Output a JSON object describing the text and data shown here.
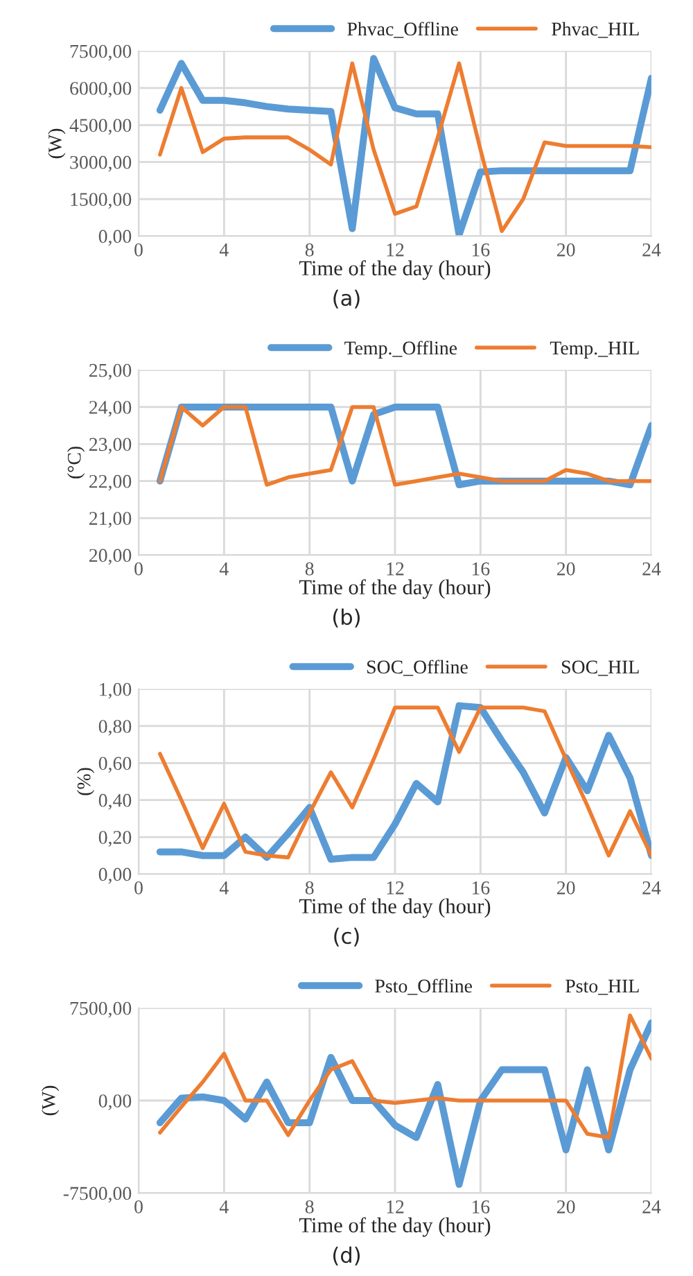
{
  "chart_data": [
    {
      "type": "line",
      "xlabel": "Time of the day (hour)",
      "ylabel": "(W)",
      "annotations": [
        "(a)"
      ],
      "x": [
        1,
        2,
        3,
        4,
        5,
        6,
        7,
        8,
        9,
        10,
        11,
        12,
        13,
        14,
        15,
        16,
        17,
        18,
        19,
        20,
        21,
        22,
        23,
        24
      ],
      "series": [
        {
          "name": "Phvac_Offline",
          "color": "#5b9bd5",
          "values": [
            5100,
            7000,
            5500,
            5500,
            5400,
            5250,
            5150,
            5100,
            5050,
            300,
            7200,
            5200,
            4950,
            4950,
            50,
            2600,
            2650,
            2650,
            2650,
            2650,
            2650,
            2650,
            2650,
            6400
          ]
        },
        {
          "name": "Phvac_HIL",
          "color": "#ed7d31",
          "values": [
            3300,
            6000,
            3400,
            3950,
            4000,
            4000,
            4000,
            3500,
            2900,
            7000,
            3500,
            900,
            1200,
            4000,
            7000,
            3500,
            200,
            1500,
            3800,
            3650,
            3650,
            3650,
            3650,
            3600
          ]
        }
      ],
      "xlim": [
        0,
        24
      ],
      "xticks": [
        0,
        4,
        8,
        12,
        16,
        20,
        24
      ],
      "ylim": [
        0,
        7500
      ],
      "yticks": [
        {
          "value": 0,
          "label": "0,00"
        },
        {
          "value": 1500,
          "label": "1500,00"
        },
        {
          "value": 3000,
          "label": "3000,00"
        },
        {
          "value": 4500,
          "label": "4500,00"
        },
        {
          "value": 6000,
          "label": "6000,00"
        },
        {
          "value": 7500,
          "label": "7500,00"
        }
      ],
      "grid": true,
      "legend": "top right",
      "marker": "none",
      "line_style": "solid"
    },
    {
      "type": "line",
      "xlabel": "Time of the day (hour)",
      "ylabel": "(°C)",
      "annotations": [
        "(b)"
      ],
      "x": [
        1,
        2,
        3,
        4,
        5,
        6,
        7,
        8,
        9,
        10,
        11,
        12,
        13,
        14,
        15,
        16,
        17,
        18,
        19,
        20,
        21,
        22,
        23,
        24
      ],
      "series": [
        {
          "name": "Temp._Offline",
          "color": "#5b9bd5",
          "values": [
            22,
            24,
            24,
            24,
            24,
            24,
            24,
            24,
            24,
            22,
            23.8,
            24,
            24,
            24,
            21.9,
            22,
            22,
            22,
            22,
            22,
            22,
            22,
            21.9,
            23.5
          ]
        },
        {
          "name": "Temp._HIL",
          "color": "#ed7d31",
          "values": [
            22,
            24,
            23.5,
            24,
            24,
            21.9,
            22.1,
            22.2,
            22.3,
            24,
            24,
            21.9,
            22,
            22.1,
            22.2,
            22.1,
            22,
            22,
            22,
            22.3,
            22.2,
            22,
            22,
            22
          ]
        }
      ],
      "xlim": [
        0,
        24
      ],
      "xticks": [
        0,
        4,
        8,
        12,
        16,
        20,
        24
      ],
      "ylim": [
        20,
        25
      ],
      "yticks": [
        {
          "value": 20,
          "label": "20,00"
        },
        {
          "value": 21,
          "label": "21,00"
        },
        {
          "value": 22,
          "label": "22,00"
        },
        {
          "value": 23,
          "label": "23,00"
        },
        {
          "value": 24,
          "label": "24,00"
        },
        {
          "value": 25,
          "label": "25,00"
        }
      ],
      "grid": true,
      "legend": "top right",
      "marker": "none",
      "line_style": "solid"
    },
    {
      "type": "line",
      "xlabel": "Time of the day (hour)",
      "ylabel": "(%)",
      "annotations": [
        "(c)"
      ],
      "x": [
        1,
        2,
        3,
        4,
        5,
        6,
        7,
        8,
        9,
        10,
        11,
        12,
        13,
        14,
        15,
        16,
        17,
        18,
        19,
        20,
        21,
        22,
        23,
        24
      ],
      "series": [
        {
          "name": "SOC_Offline",
          "color": "#5b9bd5",
          "values": [
            0.12,
            0.12,
            0.1,
            0.1,
            0.2,
            0.09,
            0.22,
            0.36,
            0.08,
            0.09,
            0.09,
            0.27,
            0.49,
            0.39,
            0.91,
            0.9,
            0.72,
            0.55,
            0.33,
            0.63,
            0.45,
            0.75,
            0.52,
            0.1
          ]
        },
        {
          "name": "SOC_HIL",
          "color": "#ed7d31",
          "values": [
            0.65,
            0.4,
            0.14,
            0.38,
            0.12,
            0.1,
            0.09,
            0.33,
            0.55,
            0.36,
            0.62,
            0.9,
            0.9,
            0.9,
            0.66,
            0.9,
            0.9,
            0.9,
            0.88,
            0.62,
            0.37,
            0.1,
            0.34,
            0.1
          ]
        }
      ],
      "xlim": [
        0,
        24
      ],
      "xticks": [
        0,
        4,
        8,
        12,
        16,
        20,
        24
      ],
      "ylim": [
        0,
        1
      ],
      "yticks": [
        {
          "value": 0,
          "label": "0,00"
        },
        {
          "value": 0.2,
          "label": "0,20"
        },
        {
          "value": 0.4,
          "label": "0,40"
        },
        {
          "value": 0.6,
          "label": "0,60"
        },
        {
          "value": 0.8,
          "label": "0,80"
        },
        {
          "value": 1,
          "label": "1,00"
        }
      ],
      "grid": true,
      "legend": "top right",
      "marker": "none",
      "line_style": "solid"
    },
    {
      "type": "line",
      "xlabel": "Time of the day (hour)",
      "ylabel": "(W)",
      "annotations": [
        "(d)"
      ],
      "x": [
        1,
        2,
        3,
        4,
        5,
        6,
        7,
        8,
        9,
        10,
        11,
        12,
        13,
        14,
        15,
        16,
        17,
        18,
        19,
        20,
        21,
        22,
        23,
        24
      ],
      "series": [
        {
          "name": "Psto_Offline",
          "color": "#5b9bd5",
          "values": [
            -1800,
            200,
            300,
            0,
            -1500,
            1500,
            -1800,
            -1800,
            3500,
            0,
            0,
            -2000,
            -3000,
            1300,
            -6800,
            0,
            2500,
            2500,
            2500,
            -4000,
            2500,
            -4000,
            2500,
            6300
          ]
        },
        {
          "name": "Psto_HIL",
          "color": "#ed7d31",
          "values": [
            -2600,
            -500,
            1500,
            3800,
            0,
            0,
            -2800,
            0,
            2500,
            3200,
            0,
            -200,
            0,
            200,
            0,
            0,
            0,
            0,
            0,
            0,
            -2700,
            -3000,
            6900,
            3400
          ]
        }
      ],
      "xlim": [
        0,
        24
      ],
      "xticks": [
        0,
        4,
        8,
        12,
        16,
        20,
        24
      ],
      "ylim": [
        -7500,
        7500
      ],
      "yticks": [
        {
          "value": -7500,
          "label": "-7500,00"
        },
        {
          "value": 0,
          "label": "0,00"
        },
        {
          "value": 7500,
          "label": "7500,00"
        }
      ],
      "grid": true,
      "legend": "top right",
      "marker": "none",
      "line_style": "solid"
    }
  ]
}
